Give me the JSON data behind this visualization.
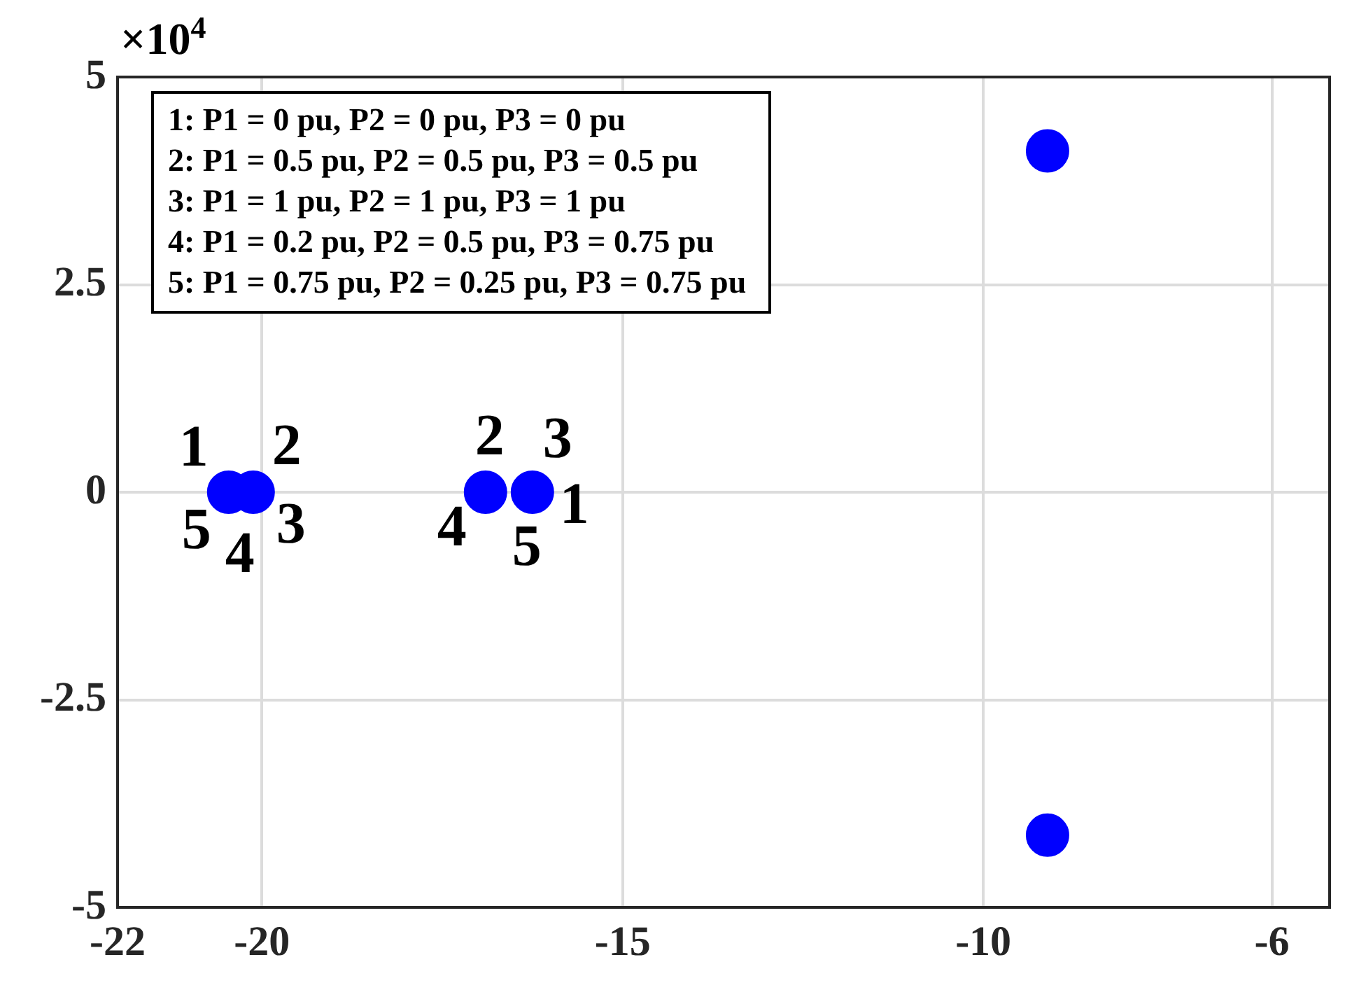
{
  "chart_data": {
    "type": "scatter",
    "ylabel": "×10$^{4}$",
    "x": [
      -20.46,
      -20.12,
      -16.9,
      -16.25,
      -9.11,
      -9.11
    ],
    "values": [
      0,
      0,
      0,
      0,
      4.11,
      -4.13
    ],
    "color": "#0000ff",
    "marker": "circle",
    "xlim": [
      -22,
      -5.2
    ],
    "xticks": [
      -22,
      -20,
      -15,
      -10,
      -6
    ],
    "ylim": [
      -5,
      5
    ],
    "yticks": [
      -5,
      -2.5,
      0,
      2.5,
      5
    ],
    "grid": true,
    "legend": false,
    "annotations": [
      "1: P1 = 0 pu, P2 = 0 pu, P3 = 0 pu",
      "2: P1 = 0.5 pu, P2 = 0.5 pu, P3 = 0.5 pu",
      "3: P1 = 1 pu, P2 = 1 pu, P3 = 1 pu",
      "4: P1 = 0.2 pu, P2 = 0.5 pu, P3 = 0.75 pu",
      "5: P1 = 0.75 pu, P2 = 0.25 pu, P3 = 0.75 pu",
      {
        "text": "1",
        "x": -20.46,
        "y": 0
      },
      {
        "text": "2",
        "x": -20.12,
        "y": 0
      },
      {
        "text": "5",
        "x": -20.46,
        "y": 0
      },
      {
        "text": "4",
        "x": -20.46,
        "y": 0
      },
      {
        "text": "3",
        "x": -20.12,
        "y": 0
      },
      {
        "text": "2",
        "x": -16.9,
        "y": 0
      },
      {
        "text": "3",
        "x": -16.25,
        "y": 0
      },
      {
        "text": "4",
        "x": -16.9,
        "y": 0
      },
      {
        "text": "5",
        "x": -16.25,
        "y": 0
      },
      {
        "text": "1",
        "x": -16.25,
        "y": 0
      }
    ]
  }
}
